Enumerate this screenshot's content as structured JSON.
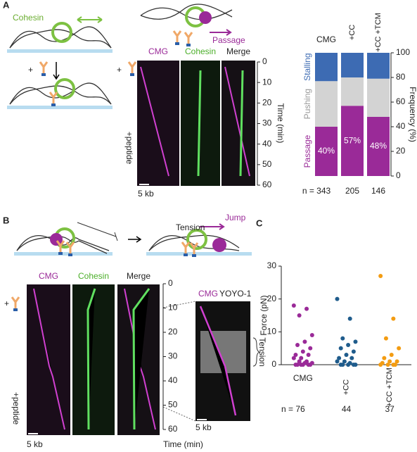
{
  "panels": {
    "a": "A",
    "b": "B",
    "c": "C"
  },
  "diagram_a": {
    "cohesin": "Cohesin",
    "plus1": "+",
    "plus2": "+",
    "passage": "Passage"
  },
  "kymo_a": {
    "cmg": "CMG",
    "cohesin": "Cohesin",
    "merge": "Merge",
    "peptide": "+peptide",
    "scale": "5 kb",
    "axis_label": "Time (min)",
    "ylim": [
      0,
      60
    ],
    "yticks": [
      0,
      10,
      20,
      30,
      40,
      50,
      60
    ]
  },
  "diagram_b": {
    "tension": "Tension",
    "jump": "Jump",
    "plus": "+"
  },
  "kymo_b": {
    "cmg": "CMG",
    "cohesin": "Cohesin",
    "merge": "Merge",
    "peptide": "+peptide",
    "scale": "5 kb",
    "axis_label": "Time (min)",
    "ylim": [
      0,
      60
    ],
    "yticks": [
      0,
      10,
      20,
      30,
      40,
      50,
      60
    ],
    "inset": {
      "cmg": "CMG",
      "yoyo": "YOYO-1",
      "tension": "Tension",
      "scale": "5 kb"
    }
  },
  "chart_data": [
    {
      "type": "stacked-bar",
      "categories": [
        "CMG",
        "+CC",
        "+CC +TCM"
      ],
      "n_labels": [
        "n = 343",
        "205",
        "146"
      ],
      "y_label": "Frequency (%)",
      "ylim": [
        0,
        100
      ],
      "yticks": [
        0,
        20,
        40,
        60,
        80,
        100
      ],
      "series": [
        {
          "name": "Passage",
          "color": "#9a2a98",
          "values": [
            40,
            57,
            48
          ],
          "value_labels": [
            "40%",
            "57%",
            "48%"
          ]
        },
        {
          "name": "Pushing",
          "color": "#d3d3d3",
          "values": [
            37,
            23,
            31
          ]
        },
        {
          "name": "Stalling",
          "color": "#3d6bb3",
          "values": [
            23,
            20,
            21
          ]
        }
      ]
    },
    {
      "type": "strip",
      "categories": [
        "CMG",
        "+CC",
        "+CC +TCM"
      ],
      "n_labels": [
        "n = 76",
        "44",
        "37"
      ],
      "y_label": "Force (pN)",
      "ylim": [
        0,
        30
      ],
      "yticks": [
        0,
        10,
        20,
        30
      ],
      "series": [
        {
          "color": "#9a2a98",
          "values": [
            18,
            17,
            15,
            9,
            7,
            6,
            5,
            4,
            3,
            3,
            2,
            2,
            1,
            1,
            0.5,
            0.5,
            0,
            0,
            0,
            0,
            0,
            0
          ]
        },
        {
          "color": "#1f5c8c",
          "values": [
            20,
            14,
            8,
            7,
            6,
            5,
            4,
            3,
            2,
            2,
            1,
            1,
            0.5,
            0,
            0,
            0,
            0,
            0
          ]
        },
        {
          "color": "#f39c12",
          "values": [
            27,
            14,
            8,
            5,
            3,
            2,
            1,
            1,
            0.5,
            0,
            0,
            0,
            0
          ]
        }
      ]
    }
  ]
}
